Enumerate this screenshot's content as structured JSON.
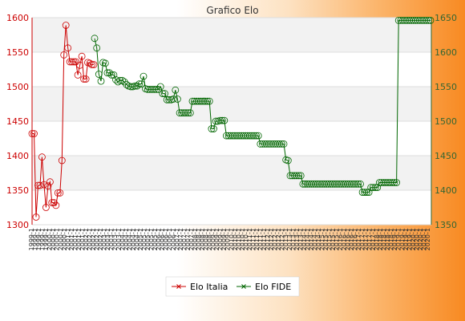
{
  "chart_data": {
    "type": "line",
    "title": "Grafico Elo",
    "y_left": {
      "ylim": [
        1300,
        1600
      ],
      "ticks": [
        1300,
        1350,
        1400,
        1450,
        1500,
        1550,
        1600
      ],
      "color": "#cc0000"
    },
    "y_right": {
      "ylim": [
        1350,
        1650
      ],
      "ticks": [
        1350,
        1400,
        1450,
        1500,
        1550,
        1600,
        1650
      ],
      "color": "#336633"
    },
    "x_tick_labels": [
      "1999-1",
      "2000-1",
      "2001-1",
      "2002-1",
      "2003-1",
      "2004-1",
      "2005-1",
      "2006-1",
      "2007-1",
      "2008-1",
      "2009-1",
      "2010-1",
      "2011-1",
      "2012-1",
      "2013-1",
      "2014-1",
      "2015-1",
      "2016-1",
      "2017-1",
      "2018-1",
      "2019-1",
      "2020-1"
    ],
    "grid": true,
    "legend_position": "bottom",
    "series": [
      {
        "name": "Elo Italia",
        "axis": "left",
        "color": "#cc0000",
        "values": [
          1432,
          1432,
          1311,
          1357,
          1357,
          1398,
          1358,
          1325,
          1356,
          1362,
          1332,
          1332,
          1328,
          1346,
          1346,
          1393,
          1546,
          1589,
          1556,
          1536,
          1536,
          1536,
          1536,
          1517,
          1531,
          1544,
          1511,
          1511,
          1535,
          1534,
          1532,
          1532
        ]
      },
      {
        "name": "Elo FIDE",
        "axis": "right",
        "color": "#006600",
        "values": [
          1620,
          1606,
          1568,
          1558,
          1585,
          1584,
          1570,
          1570,
          1567,
          1567,
          1560,
          1557,
          1559,
          1559,
          1557,
          1553,
          1551,
          1550,
          1550,
          1551,
          1551,
          1554,
          1554,
          1565,
          1547,
          1546,
          1546,
          1546,
          1546,
          1546,
          1546,
          1550,
          1540,
          1540,
          1531,
          1531,
          1531,
          1532,
          1545,
          1532,
          1512,
          1512,
          1512,
          1512,
          1512,
          1512,
          1529,
          1529,
          1529,
          1529,
          1529,
          1529,
          1529,
          1529,
          1529,
          1489,
          1489,
          1500,
          1500,
          1501,
          1501,
          1501,
          1479,
          1479,
          1479,
          1479,
          1479,
          1479,
          1479,
          1479,
          1479,
          1479,
          1479,
          1479,
          1479,
          1479,
          1479,
          1479,
          1467,
          1467,
          1467,
          1467,
          1467,
          1467,
          1467,
          1467,
          1467,
          1467,
          1467,
          1467,
          1444,
          1443,
          1421,
          1421,
          1421,
          1421,
          1421,
          1421,
          1409,
          1409,
          1409,
          1409,
          1409,
          1409,
          1409,
          1409,
          1409,
          1409,
          1409,
          1409,
          1409,
          1409,
          1409,
          1409,
          1409,
          1409,
          1409,
          1409,
          1409,
          1409,
          1409,
          1409,
          1409,
          1409,
          1409,
          1409,
          1397,
          1397,
          1397,
          1397,
          1404,
          1404,
          1404,
          1404,
          1411,
          1411,
          1411,
          1411,
          1411,
          1411,
          1411,
          1411,
          1411,
          1646,
          1646,
          1646,
          1646,
          1646,
          1646,
          1646,
          1646,
          1646,
          1646,
          1646,
          1646,
          1646,
          1646,
          1646,
          1646
        ]
      }
    ]
  }
}
